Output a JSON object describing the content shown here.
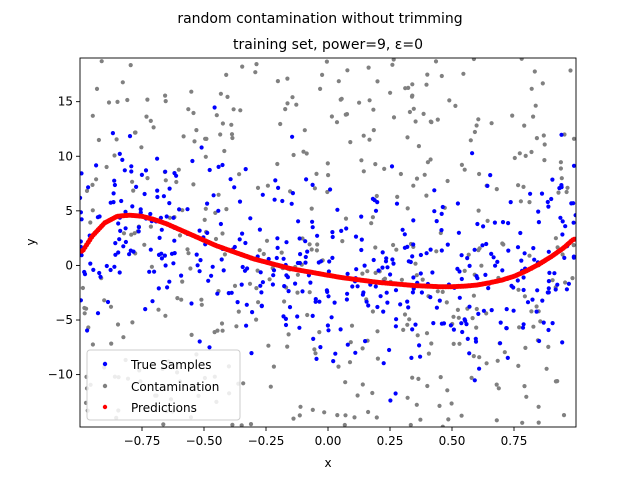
{
  "chart_data": {
    "type": "scatter",
    "suptitle": "random contamination without trimming",
    "title": "training set, power=9, ε=0",
    "xlabel": "x",
    "ylabel": "y",
    "xlim": [
      -1.0,
      1.0
    ],
    "ylim": [
      -14.8,
      19.0
    ],
    "xticks": [
      -0.75,
      -0.5,
      -0.25,
      0.0,
      0.25,
      0.5,
      0.75
    ],
    "xtick_labels": [
      "−0.75",
      "−0.50",
      "−0.25",
      "0.00",
      "0.25",
      "0.50",
      "0.75"
    ],
    "yticks": [
      -10,
      -5,
      0,
      5,
      10,
      15
    ],
    "ytick_labels": [
      "−10",
      "−5",
      "0",
      "5",
      "10",
      "15"
    ],
    "grid": false,
    "legend_position": "lower-left",
    "colors": {
      "true_samples": "#0000ff",
      "contamination": "#808080",
      "predictions": "#ff0000"
    },
    "series": [
      {
        "key": "true_samples",
        "name": "True Samples",
        "marker": "dot",
        "sample_count": 450,
        "trend": "noisy cloud around the prediction curve"
      },
      {
        "key": "contamination",
        "name": "Contamination",
        "marker": "dot",
        "sample_count": 450,
        "distribution": "uniform over plot area"
      },
      {
        "key": "predictions",
        "name": "Predictions",
        "marker": "dot",
        "curve_points": [
          [
            -0.99,
            1.3
          ],
          [
            -0.95,
            2.7
          ],
          [
            -0.9,
            3.9
          ],
          [
            -0.85,
            4.5
          ],
          [
            -0.8,
            4.6
          ],
          [
            -0.75,
            4.5
          ],
          [
            -0.7,
            4.2
          ],
          [
            -0.65,
            3.8
          ],
          [
            -0.6,
            3.3
          ],
          [
            -0.55,
            2.8
          ],
          [
            -0.5,
            2.3
          ],
          [
            -0.45,
            1.8
          ],
          [
            -0.4,
            1.4
          ],
          [
            -0.35,
            1.0
          ],
          [
            -0.3,
            0.6
          ],
          [
            -0.25,
            0.3
          ],
          [
            -0.2,
            0.0
          ],
          [
            -0.15,
            -0.3
          ],
          [
            -0.1,
            -0.5
          ],
          [
            -0.05,
            -0.7
          ],
          [
            0.0,
            -0.9
          ],
          [
            0.05,
            -1.1
          ],
          [
            0.1,
            -1.25
          ],
          [
            0.15,
            -1.4
          ],
          [
            0.2,
            -1.55
          ],
          [
            0.25,
            -1.65
          ],
          [
            0.3,
            -1.75
          ],
          [
            0.35,
            -1.85
          ],
          [
            0.4,
            -1.9
          ],
          [
            0.45,
            -1.95
          ],
          [
            0.5,
            -1.95
          ],
          [
            0.55,
            -1.9
          ],
          [
            0.6,
            -1.8
          ],
          [
            0.65,
            -1.6
          ],
          [
            0.7,
            -1.35
          ],
          [
            0.75,
            -1.0
          ],
          [
            0.8,
            -0.5
          ],
          [
            0.85,
            0.1
          ],
          [
            0.9,
            0.8
          ],
          [
            0.95,
            1.6
          ],
          [
            0.99,
            2.4
          ]
        ]
      }
    ]
  }
}
